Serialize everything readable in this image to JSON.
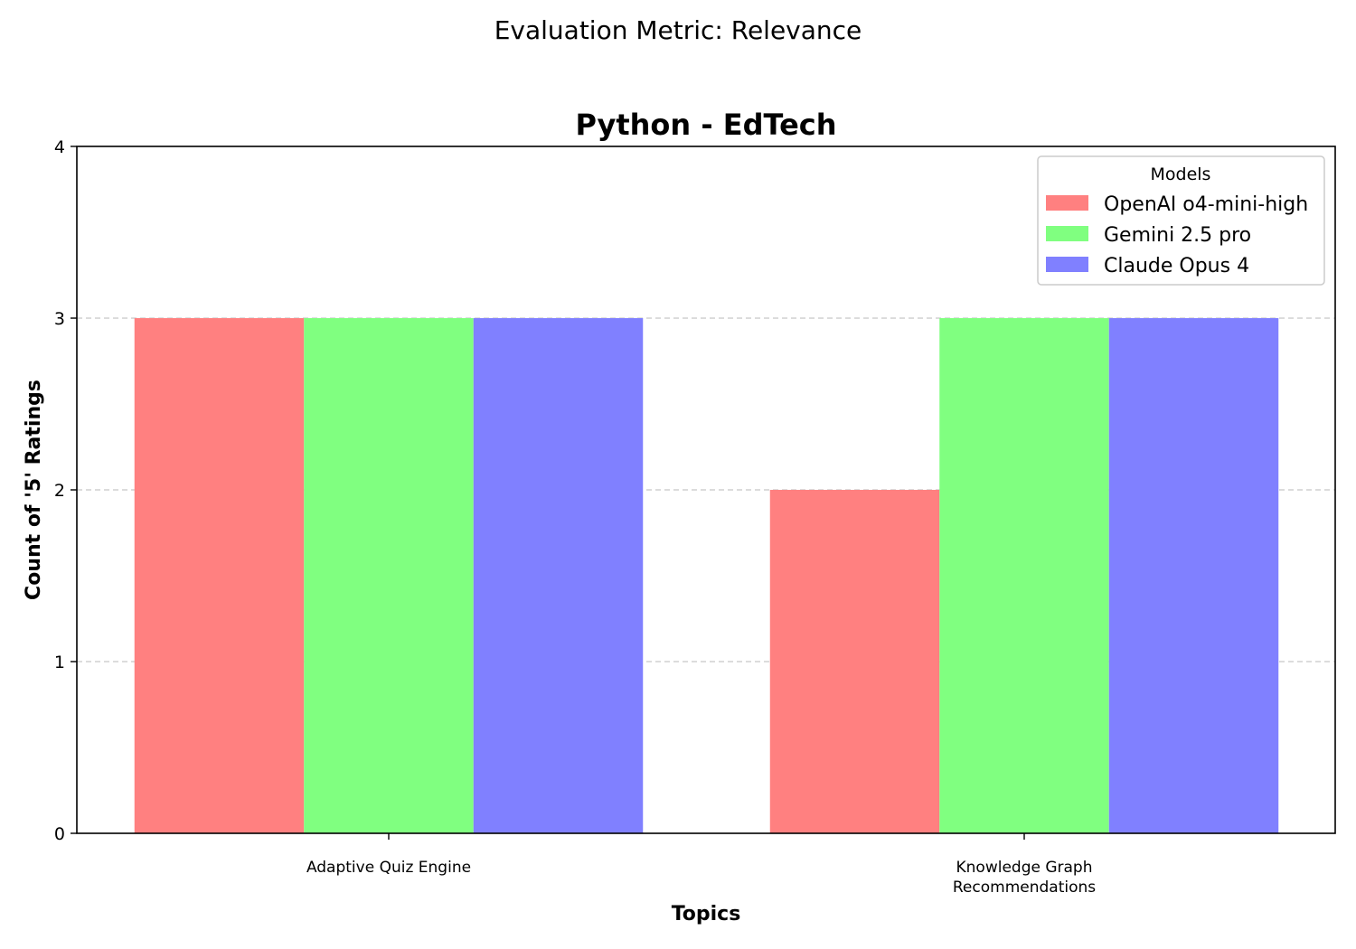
{
  "figure": {
    "suptitle": "Evaluation Metric: Relevance"
  },
  "chart_data": {
    "type": "bar",
    "title": "Python - EdTech",
    "xlabel": "Topics",
    "ylabel": "Count of '5' Ratings",
    "categories": [
      [
        "Adaptive Quiz Engine"
      ],
      [
        "Knowledge Graph",
        "Recommendations"
      ]
    ],
    "series": [
      {
        "name": "OpenAI o4-mini-high",
        "color": "#ff8080",
        "values": [
          3,
          2
        ]
      },
      {
        "name": "Gemini 2.5 pro",
        "color": "#80ff80",
        "values": [
          3,
          3
        ]
      },
      {
        "name": "Claude Opus 4",
        "color": "#8080ff",
        "values": [
          3,
          3
        ]
      }
    ],
    "ylim": [
      0,
      4
    ],
    "yticks": [
      0,
      1,
      2,
      3,
      4
    ],
    "grid": "y-dashed",
    "legend": {
      "title": "Models",
      "position": "top-right"
    }
  }
}
